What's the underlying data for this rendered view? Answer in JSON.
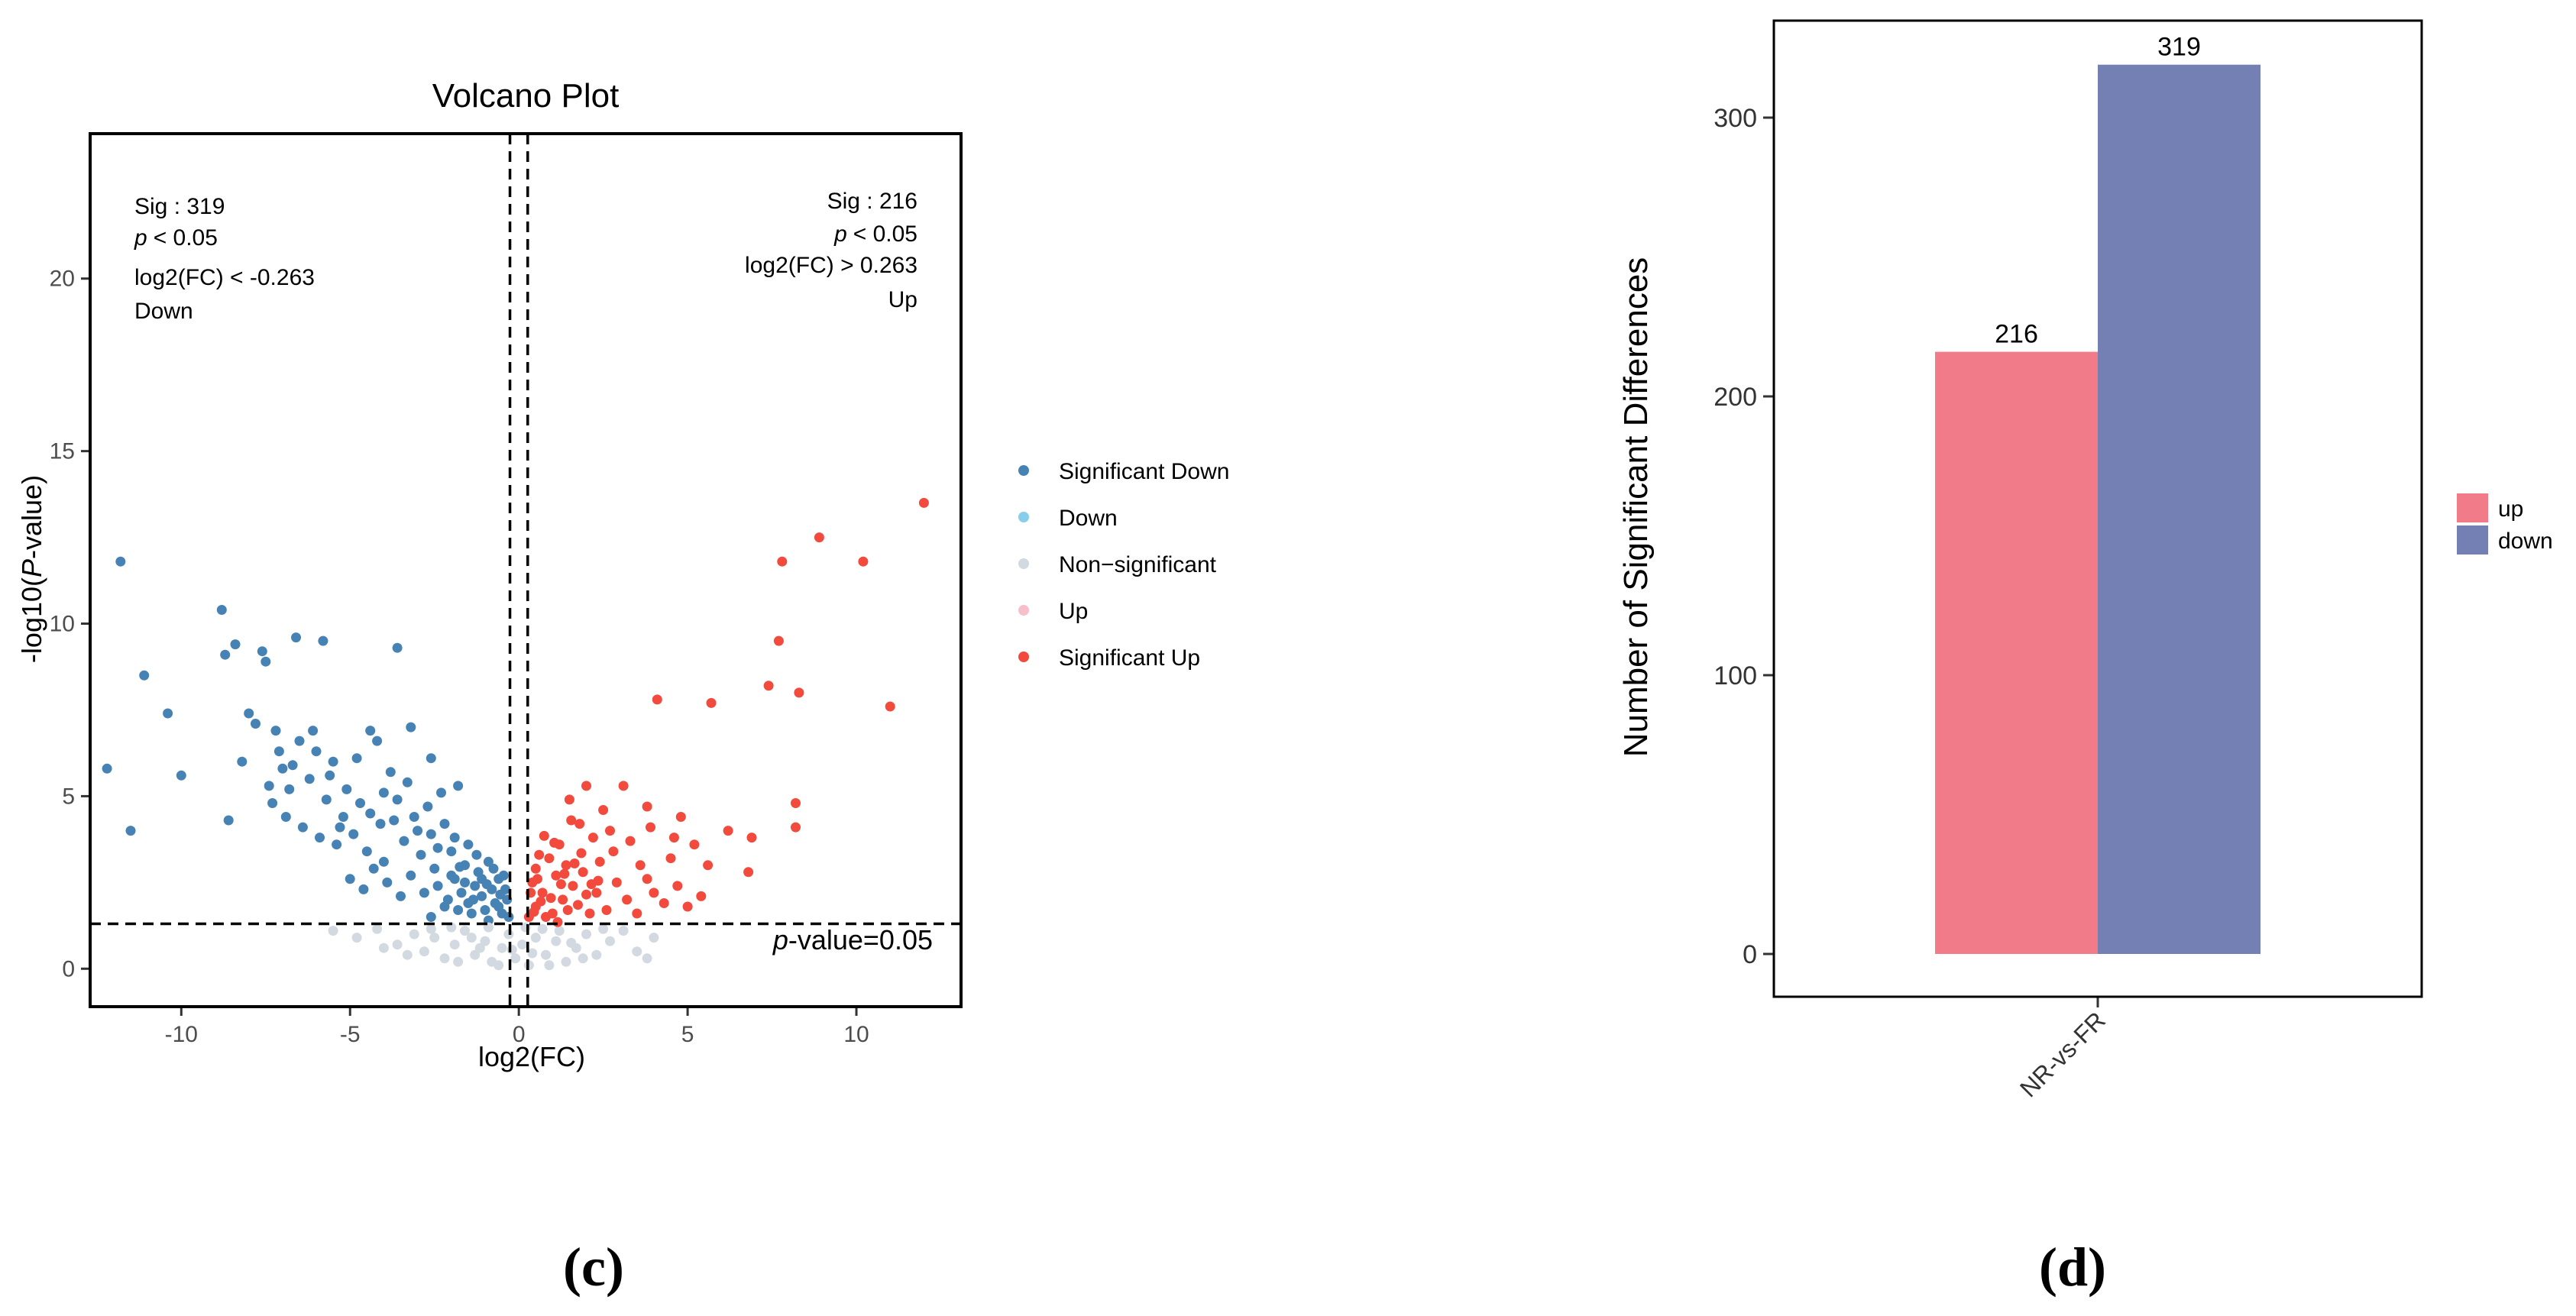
{
  "chart_data": [
    {
      "type": "scatter",
      "title": "Volcano Plot",
      "xlabel": "log2(FC)",
      "ylabel_prefix": "-log10(",
      "ylabel_italic": "P",
      "ylabel_suffix": "-value)",
      "xlim": [
        -12.7,
        13.1
      ],
      "ylim": [
        -1.1,
        24.2
      ],
      "x_ticks": [
        -10,
        -5,
        0,
        5,
        10
      ],
      "x_tick_labels": [
        "-10",
        "-5",
        "0",
        "5",
        "10"
      ],
      "y_ticks": [
        0,
        5,
        10,
        15,
        20
      ],
      "y_tick_labels": [
        "0",
        "5",
        "10",
        "15",
        "20"
      ],
      "fc_thresholds": [
        -0.263,
        0.263
      ],
      "p_threshold_neglog10": 1.301,
      "threshold_label_italic": "p",
      "threshold_label_rest": "-value=0.05",
      "annotation_left": {
        "lines": [
          "Sig : 319",
          "< 0.05",
          "log2(FC) < -0.263",
          "Down"
        ],
        "p_italic": "p"
      },
      "annotation_right": {
        "lines": [
          "Sig : 216",
          "< 0.05",
          "log2(FC) > 0.263",
          "Up"
        ],
        "p_italic": "p"
      },
      "legend": [
        {
          "label": "Significant Down",
          "color": "#4682b4"
        },
        {
          "label": "Down",
          "color": "#87ceeb"
        },
        {
          "label": "Non−significant",
          "color": "#d3d9e0"
        },
        {
          "label": "Up",
          "color": "#f7bfc9"
        },
        {
          "label": "Significant Up",
          "color": "#f24a3d"
        }
      ],
      "series": [
        {
          "name": "Significant Down",
          "color": "#4682b4",
          "points": [
            [
              -11.8,
              11.8
            ],
            [
              -12.2,
              5.8
            ],
            [
              -11.5,
              4.0
            ],
            [
              -11.1,
              8.5
            ],
            [
              -10.4,
              7.4
            ],
            [
              -10.0,
              5.6
            ],
            [
              -8.8,
              10.4
            ],
            [
              -8.7,
              9.1
            ],
            [
              -8.4,
              9.4
            ],
            [
              -8.6,
              4.3
            ],
            [
              -7.6,
              9.2
            ],
            [
              -7.5,
              8.9
            ],
            [
              -6.6,
              9.6
            ],
            [
              -5.8,
              9.5
            ],
            [
              -3.6,
              9.3
            ],
            [
              -8.0,
              7.4
            ],
            [
              -7.8,
              7.1
            ],
            [
              -7.2,
              6.9
            ],
            [
              -6.5,
              6.6
            ],
            [
              -6.0,
              6.3
            ],
            [
              -5.5,
              6.0
            ],
            [
              -4.8,
              6.1
            ],
            [
              -4.2,
              6.6
            ],
            [
              -3.8,
              5.7
            ],
            [
              -3.2,
              7.0
            ],
            [
              -2.6,
              6.1
            ],
            [
              -4.4,
              6.9
            ],
            [
              -7.0,
              5.8
            ],
            [
              -6.8,
              5.2
            ],
            [
              -6.2,
              5.5
            ],
            [
              -5.7,
              4.9
            ],
            [
              -5.2,
              4.4
            ],
            [
              -4.7,
              4.8
            ],
            [
              -4.1,
              4.2
            ],
            [
              -3.6,
              4.9
            ],
            [
              -3.1,
              4.4
            ],
            [
              -2.7,
              4.7
            ],
            [
              -2.3,
              5.1
            ],
            [
              -1.8,
              5.3
            ],
            [
              -8.2,
              6.0
            ],
            [
              -7.3,
              4.8
            ],
            [
              -6.9,
              4.4
            ],
            [
              -6.4,
              4.1
            ],
            [
              -5.9,
              3.8
            ],
            [
              -5.4,
              3.6
            ],
            [
              -4.9,
              3.9
            ],
            [
              -4.5,
              3.4
            ],
            [
              -4.0,
              3.1
            ],
            [
              -3.4,
              3.7
            ],
            [
              -2.9,
              3.3
            ],
            [
              -2.5,
              2.9
            ],
            [
              -2.0,
              3.4
            ],
            [
              -1.6,
              3.0
            ],
            [
              -1.2,
              2.8
            ],
            [
              -0.9,
              3.1
            ],
            [
              -0.6,
              2.6
            ],
            [
              -0.4,
              2.3
            ],
            [
              -5.0,
              2.6
            ],
            [
              -4.6,
              2.3
            ],
            [
              -4.3,
              2.9
            ],
            [
              -3.9,
              2.5
            ],
            [
              -3.5,
              2.1
            ],
            [
              -3.2,
              2.7
            ],
            [
              -2.8,
              2.2
            ],
            [
              -2.4,
              2.4
            ],
            [
              -2.1,
              2.0
            ],
            [
              -1.9,
              2.6
            ],
            [
              -1.7,
              2.2
            ],
            [
              -1.5,
              1.9
            ],
            [
              -1.3,
              2.4
            ],
            [
              -1.1,
              2.1
            ],
            [
              -1.0,
              1.7
            ],
            [
              -0.8,
              2.3
            ],
            [
              -0.7,
              1.9
            ],
            [
              -0.5,
              1.6
            ],
            [
              -0.35,
              2.0
            ],
            [
              -0.3,
              1.5
            ],
            [
              -1.4,
              1.6
            ],
            [
              -1.8,
              1.7
            ],
            [
              -2.2,
              1.8
            ],
            [
              -2.6,
              1.5
            ],
            [
              -0.9,
              1.4
            ],
            [
              -0.6,
              1.8
            ],
            [
              -1.1,
              2.6
            ],
            [
              -1.6,
              2.5
            ],
            [
              -2.0,
              2.7
            ],
            [
              -0.75,
              2.9
            ],
            [
              -0.45,
              2.7
            ],
            [
              -1.25,
              3.3
            ],
            [
              -1.5,
              3.6
            ],
            [
              -2.6,
              3.9
            ],
            [
              -3.0,
              4.0
            ],
            [
              -3.7,
              4.3
            ],
            [
              -4.4,
              4.5
            ],
            [
              -5.1,
              5.2
            ],
            [
              -5.6,
              5.6
            ],
            [
              -6.1,
              6.9
            ],
            [
              -6.7,
              5.9
            ],
            [
              -7.1,
              6.3
            ],
            [
              -7.4,
              5.3
            ],
            [
              -5.3,
              4.1
            ],
            [
              -4.0,
              5.1
            ],
            [
              -3.3,
              5.4
            ],
            [
              -2.2,
              4.2
            ],
            [
              -1.9,
              3.8
            ],
            [
              -2.4,
              3.5
            ],
            [
              -0.95,
              2.45
            ],
            [
              -0.55,
              2.15
            ],
            [
              -1.35,
              2.0
            ],
            [
              -1.75,
              2.95
            ]
          ]
        },
        {
          "name": "Non-significant",
          "color": "#d3d9e0",
          "points": [
            [
              -5.5,
              1.1
            ],
            [
              -4.8,
              0.9
            ],
            [
              -4.2,
              1.15
            ],
            [
              -3.6,
              0.7
            ],
            [
              -3.1,
              1.0
            ],
            [
              -2.8,
              0.5
            ],
            [
              -2.5,
              0.9
            ],
            [
              -2.2,
              0.3
            ],
            [
              -1.9,
              0.7
            ],
            [
              -1.6,
              1.1
            ],
            [
              -1.3,
              0.4
            ],
            [
              -1.0,
              0.8
            ],
            [
              -0.8,
              0.2
            ],
            [
              -0.5,
              0.6
            ],
            [
              -0.3,
              1.0
            ],
            [
              -0.1,
              0.3
            ],
            [
              0.1,
              0.7
            ],
            [
              0.3,
              0.1
            ],
            [
              0.5,
              0.9
            ],
            [
              0.8,
              0.4
            ],
            [
              1.1,
              0.8
            ],
            [
              1.4,
              0.2
            ],
            [
              1.7,
              0.6
            ],
            [
              2.0,
              1.0
            ],
            [
              2.3,
              0.4
            ],
            [
              2.7,
              0.8
            ],
            [
              3.1,
              1.1
            ],
            [
              3.5,
              0.5
            ],
            [
              4.0,
              0.9
            ],
            [
              -2.0,
              1.2
            ],
            [
              -1.4,
              0.9
            ],
            [
              -0.9,
              1.2
            ],
            [
              0.2,
              1.2
            ],
            [
              0.7,
              1.15
            ],
            [
              1.2,
              1.1
            ],
            [
              -3.3,
              0.4
            ],
            [
              -2.6,
              1.15
            ],
            [
              -1.8,
              0.2
            ],
            [
              -0.6,
              0.1
            ],
            [
              0.9,
              0.1
            ],
            [
              1.9,
              0.3
            ],
            [
              2.5,
              1.15
            ],
            [
              -4.0,
              0.6
            ],
            [
              3.8,
              0.3
            ],
            [
              -0.2,
              0.55
            ],
            [
              0.4,
              0.45
            ],
            [
              -1.15,
              0.6
            ],
            [
              1.55,
              0.75
            ]
          ]
        },
        {
          "name": "Significant Up",
          "color": "#f24a3d",
          "points": [
            [
              12.0,
              13.5
            ],
            [
              8.9,
              12.5
            ],
            [
              10.2,
              11.8
            ],
            [
              7.8,
              11.8
            ],
            [
              7.7,
              9.5
            ],
            [
              7.4,
              8.2
            ],
            [
              8.3,
              8.0
            ],
            [
              11.0,
              7.6
            ],
            [
              4.1,
              7.8
            ],
            [
              5.7,
              7.7
            ],
            [
              8.2,
              4.8
            ],
            [
              8.2,
              4.1
            ],
            [
              1.5,
              4.9
            ],
            [
              2.0,
              5.3
            ],
            [
              3.1,
              5.3
            ],
            [
              2.5,
              4.6
            ],
            [
              3.8,
              4.7
            ],
            [
              4.8,
              4.4
            ],
            [
              6.2,
              4.0
            ],
            [
              6.9,
              3.8
            ],
            [
              5.2,
              3.6
            ],
            [
              4.5,
              3.2
            ],
            [
              3.6,
              3.0
            ],
            [
              2.8,
              3.4
            ],
            [
              2.2,
              3.8
            ],
            [
              1.8,
              4.2
            ],
            [
              1.2,
              3.6
            ],
            [
              0.9,
              3.2
            ],
            [
              0.5,
              2.9
            ],
            [
              0.4,
              2.5
            ],
            [
              0.7,
              2.2
            ],
            [
              0.5,
              1.8
            ],
            [
              0.3,
              1.5
            ],
            [
              1.0,
              1.6
            ],
            [
              1.3,
              2.0
            ],
            [
              1.6,
              2.4
            ],
            [
              1.9,
              2.8
            ],
            [
              2.3,
              2.2
            ],
            [
              2.6,
              1.7
            ],
            [
              2.9,
              2.5
            ],
            [
              3.2,
              2.0
            ],
            [
              3.5,
              1.6
            ],
            [
              4.0,
              2.2
            ],
            [
              4.3,
              1.9
            ],
            [
              4.7,
              2.4
            ],
            [
              5.0,
              1.8
            ],
            [
              5.4,
              2.1
            ],
            [
              3.8,
              2.6
            ],
            [
              4.6,
              3.8
            ],
            [
              5.6,
              3.0
            ],
            [
              6.8,
              2.8
            ],
            [
              1.1,
              2.7
            ],
            [
              0.8,
              1.5
            ],
            [
              1.45,
              1.7
            ],
            [
              2.1,
              1.6
            ],
            [
              0.6,
              3.3
            ],
            [
              1.4,
              3.0
            ],
            [
              2.4,
              3.1
            ],
            [
              3.3,
              3.7
            ],
            [
              2.7,
              4.0
            ],
            [
              3.9,
              4.1
            ],
            [
              0.35,
              2.2
            ],
            [
              0.55,
              2.6
            ],
            [
              0.95,
              2.05
            ],
            [
              1.25,
              2.45
            ],
            [
              1.75,
              1.85
            ],
            [
              2.0,
              2.15
            ],
            [
              2.35,
              2.55
            ],
            [
              1.05,
              3.65
            ],
            [
              1.55,
              4.3
            ],
            [
              0.75,
              3.85
            ],
            [
              1.85,
              3.35
            ],
            [
              0.45,
              1.65
            ],
            [
              0.65,
              1.95
            ],
            [
              1.15,
              1.35
            ],
            [
              1.35,
              2.75
            ],
            [
              1.65,
              3.05
            ],
            [
              2.15,
              2.45
            ]
          ]
        }
      ]
    },
    {
      "type": "bar",
      "categories": [
        "NR-vs-FR"
      ],
      "series": [
        {
          "name": "up",
          "values": [
            216
          ],
          "color": "#f27b8a"
        },
        {
          "name": "down",
          "values": [
            319
          ],
          "color": "#7480b3"
        }
      ],
      "value_labels": [
        "216",
        "319"
      ],
      "xlabel": "",
      "ylabel": "Number of Significant Differences",
      "ylim": [
        0,
        335
      ],
      "y_ticks": [
        0,
        100,
        200,
        300
      ],
      "y_tick_labels": [
        "0",
        "100",
        "200",
        "300"
      ],
      "legend": [
        {
          "label": "up",
          "color": "#f27b8a"
        },
        {
          "label": "down",
          "color": "#7480b3"
        }
      ]
    }
  ],
  "panel_labels": {
    "left": "(c)",
    "right": "(d)"
  }
}
